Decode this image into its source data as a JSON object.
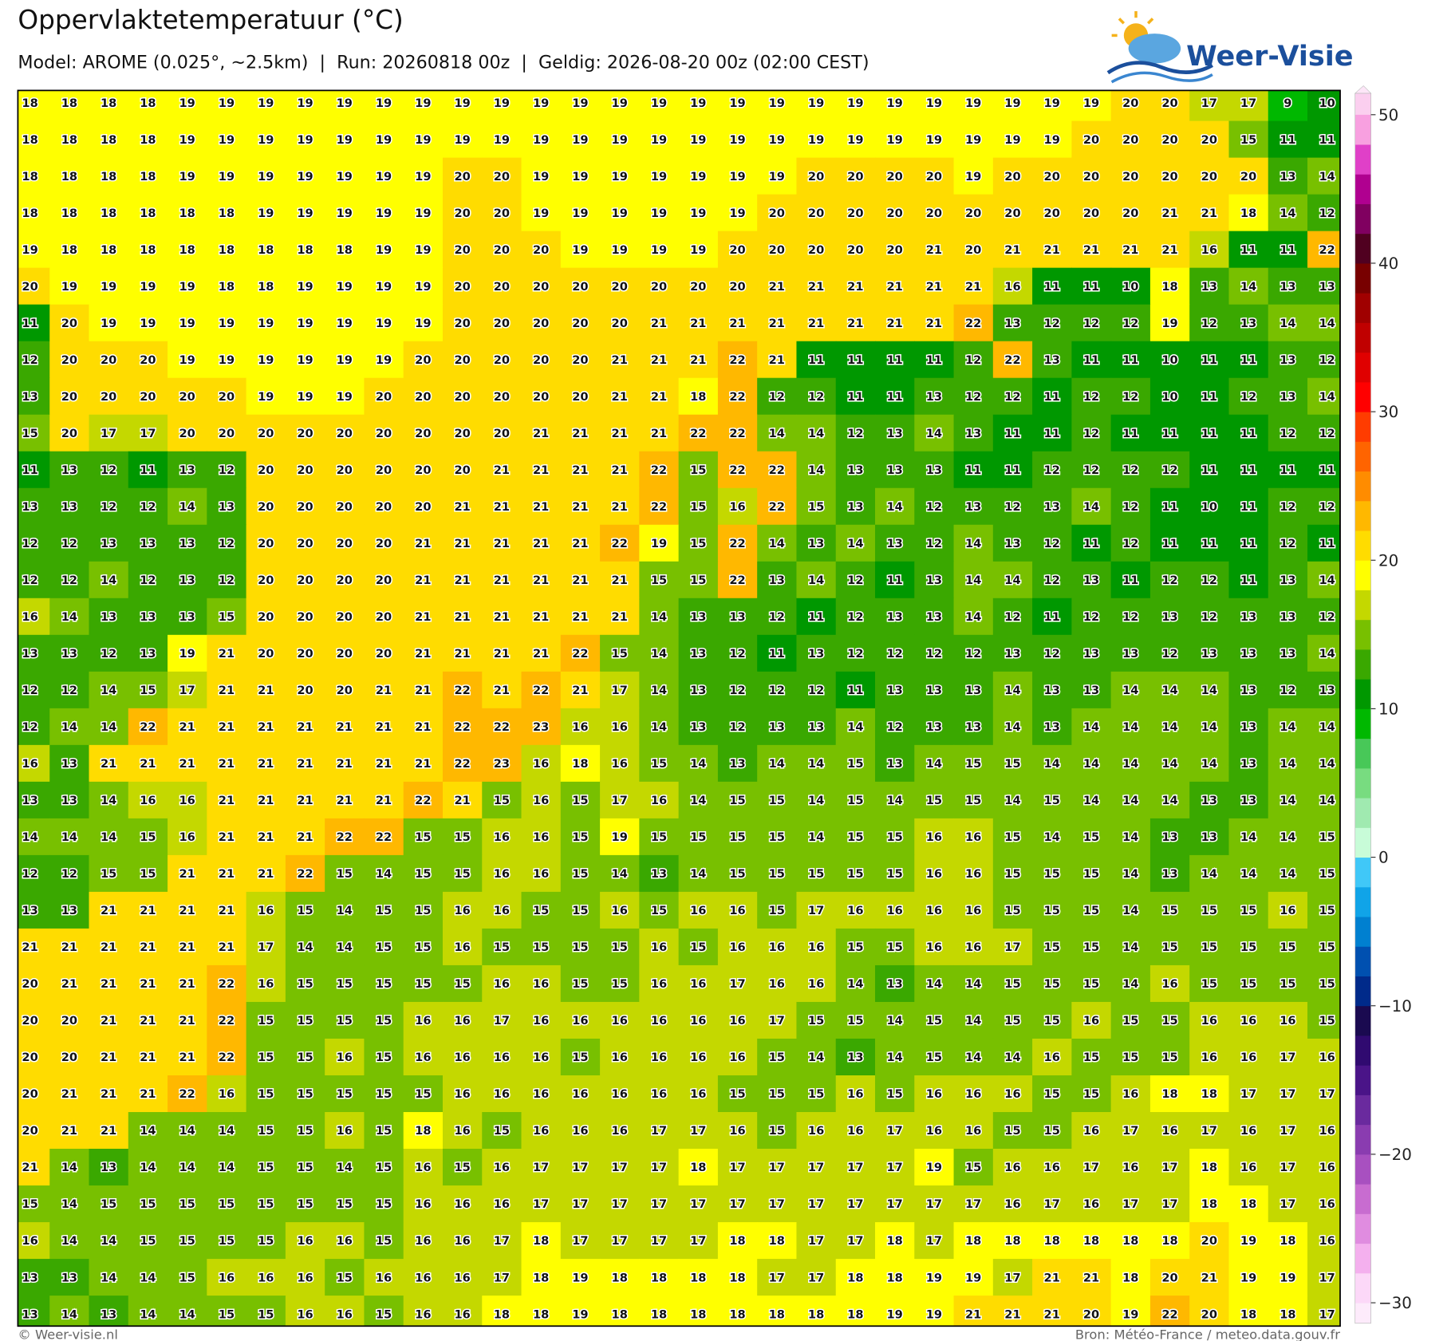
{
  "header": {
    "title": "Oppervlaktetemperatuur (°C)",
    "subtitle": "Model: AROME (0.025°, ~2.5km)  |  Run: 20260818 00z  |  Geldig: 2026-08-20 00z (02:00 CEST)"
  },
  "logo": "Weer-Visie",
  "map": {
    "values": [
      [
        18,
        18,
        18,
        18,
        19,
        19,
        19,
        19,
        19,
        19,
        19,
        19,
        19,
        19,
        19,
        19,
        19,
        19,
        19,
        19,
        19,
        19,
        19,
        19,
        19,
        19,
        19,
        19,
        20,
        20,
        17,
        17,
        9,
        10
      ],
      [
        18,
        18,
        18,
        18,
        19,
        19,
        19,
        19,
        19,
        19,
        19,
        19,
        19,
        19,
        19,
        19,
        19,
        19,
        19,
        19,
        19,
        19,
        19,
        19,
        19,
        19,
        19,
        20,
        20,
        20,
        20,
        15,
        11,
        11
      ],
      [
        18,
        18,
        18,
        18,
        19,
        19,
        19,
        19,
        19,
        19,
        19,
        20,
        20,
        19,
        19,
        19,
        19,
        19,
        19,
        19,
        20,
        20,
        20,
        20,
        19,
        20,
        20,
        20,
        20,
        20,
        20,
        20,
        13,
        14
      ],
      [
        18,
        18,
        18,
        18,
        18,
        18,
        19,
        19,
        19,
        19,
        19,
        20,
        20,
        19,
        19,
        19,
        19,
        19,
        19,
        20,
        20,
        20,
        20,
        20,
        20,
        20,
        20,
        20,
        20,
        21,
        21,
        18,
        14,
        12
      ],
      [
        19,
        18,
        18,
        18,
        18,
        18,
        18,
        18,
        18,
        19,
        19,
        20,
        20,
        20,
        19,
        19,
        19,
        19,
        20,
        20,
        20,
        20,
        20,
        21,
        20,
        21,
        21,
        21,
        21,
        21,
        16,
        11,
        11,
        22
      ],
      [
        20,
        19,
        19,
        19,
        19,
        18,
        18,
        19,
        19,
        19,
        19,
        20,
        20,
        20,
        20,
        20,
        20,
        20,
        20,
        21,
        21,
        21,
        21,
        21,
        21,
        16,
        11,
        11,
        10,
        18,
        13,
        14,
        13,
        13
      ],
      [
        11,
        20,
        19,
        19,
        19,
        19,
        19,
        19,
        19,
        19,
        19,
        20,
        20,
        20,
        20,
        20,
        21,
        21,
        21,
        21,
        21,
        21,
        21,
        21,
        22,
        13,
        12,
        12,
        12,
        19,
        12,
        13,
        14,
        14
      ],
      [
        12,
        20,
        20,
        20,
        19,
        19,
        19,
        19,
        19,
        19,
        20,
        20,
        20,
        20,
        20,
        21,
        21,
        21,
        22,
        21,
        11,
        11,
        11,
        11,
        12,
        22,
        13,
        11,
        11,
        10,
        11,
        11,
        13,
        12
      ],
      [
        13,
        20,
        20,
        20,
        20,
        20,
        19,
        19,
        19,
        20,
        20,
        20,
        20,
        20,
        20,
        21,
        21,
        18,
        22,
        12,
        12,
        11,
        11,
        13,
        12,
        12,
        11,
        12,
        12,
        10,
        11,
        12,
        13,
        14
      ],
      [
        15,
        20,
        17,
        17,
        20,
        20,
        20,
        20,
        20,
        20,
        20,
        20,
        20,
        21,
        21,
        21,
        21,
        22,
        22,
        14,
        14,
        12,
        13,
        14,
        13,
        11,
        11,
        12,
        11,
        11,
        11,
        11,
        12,
        12
      ],
      [
        11,
        13,
        12,
        11,
        13,
        12,
        20,
        20,
        20,
        20,
        20,
        20,
        21,
        21,
        21,
        21,
        22,
        15,
        22,
        22,
        14,
        13,
        13,
        13,
        11,
        11,
        12,
        12,
        12,
        12,
        11,
        11,
        11,
        11
      ],
      [
        13,
        13,
        12,
        12,
        14,
        13,
        20,
        20,
        20,
        20,
        20,
        21,
        21,
        21,
        21,
        21,
        22,
        15,
        16,
        22,
        15,
        13,
        14,
        12,
        13,
        12,
        13,
        14,
        12,
        11,
        10,
        11,
        12,
        12
      ],
      [
        12,
        12,
        13,
        13,
        13,
        12,
        20,
        20,
        20,
        20,
        21,
        21,
        21,
        21,
        21,
        22,
        19,
        15,
        22,
        14,
        13,
        14,
        13,
        12,
        14,
        13,
        12,
        11,
        12,
        11,
        11,
        11,
        12,
        11
      ],
      [
        12,
        12,
        14,
        12,
        13,
        12,
        20,
        20,
        20,
        20,
        21,
        21,
        21,
        21,
        21,
        21,
        15,
        15,
        22,
        13,
        14,
        12,
        11,
        13,
        14,
        14,
        12,
        13,
        11,
        12,
        12,
        11,
        13,
        14
      ],
      [
        16,
        14,
        13,
        13,
        13,
        15,
        20,
        20,
        20,
        20,
        21,
        21,
        21,
        21,
        21,
        21,
        14,
        13,
        13,
        12,
        11,
        12,
        13,
        13,
        14,
        12,
        11,
        12,
        12,
        13,
        12,
        13,
        13,
        12
      ],
      [
        13,
        13,
        12,
        13,
        19,
        21,
        20,
        20,
        20,
        20,
        21,
        21,
        21,
        21,
        22,
        15,
        14,
        13,
        12,
        11,
        13,
        12,
        12,
        12,
        12,
        13,
        12,
        13,
        13,
        12,
        13,
        13,
        13,
        14
      ],
      [
        12,
        12,
        14,
        15,
        17,
        21,
        21,
        20,
        20,
        21,
        21,
        22,
        21,
        22,
        21,
        17,
        14,
        13,
        12,
        12,
        12,
        11,
        13,
        13,
        13,
        14,
        13,
        13,
        14,
        14,
        14,
        13,
        12,
        13
      ],
      [
        12,
        14,
        14,
        22,
        21,
        21,
        21,
        21,
        21,
        21,
        21,
        22,
        22,
        23,
        16,
        16,
        14,
        13,
        12,
        13,
        13,
        14,
        12,
        13,
        13,
        14,
        13,
        14,
        14,
        14,
        14,
        13,
        14,
        14
      ],
      [
        16,
        13,
        21,
        21,
        21,
        21,
        21,
        21,
        21,
        21,
        21,
        22,
        23,
        16,
        18,
        16,
        15,
        14,
        13,
        14,
        14,
        15,
        13,
        14,
        15,
        15,
        14,
        14,
        14,
        14,
        14,
        13,
        14,
        14
      ],
      [
        13,
        13,
        14,
        16,
        16,
        21,
        21,
        21,
        21,
        21,
        22,
        21,
        15,
        16,
        15,
        17,
        16,
        14,
        15,
        15,
        14,
        15,
        14,
        15,
        15,
        14,
        15,
        14,
        14,
        14,
        13,
        13,
        14,
        14
      ],
      [
        14,
        14,
        14,
        15,
        16,
        21,
        21,
        21,
        22,
        22,
        15,
        15,
        16,
        16,
        15,
        19,
        15,
        15,
        15,
        15,
        14,
        15,
        15,
        16,
        16,
        15,
        14,
        15,
        14,
        13,
        13,
        14,
        14,
        15
      ],
      [
        12,
        12,
        15,
        15,
        21,
        21,
        21,
        22,
        15,
        14,
        15,
        15,
        16,
        16,
        15,
        14,
        13,
        14,
        15,
        15,
        15,
        15,
        15,
        16,
        16,
        15,
        15,
        15,
        14,
        13,
        14,
        14,
        14,
        15
      ],
      [
        13,
        13,
        21,
        21,
        21,
        21,
        16,
        15,
        14,
        15,
        15,
        16,
        16,
        15,
        15,
        16,
        15,
        16,
        16,
        15,
        17,
        16,
        16,
        16,
        16,
        15,
        15,
        15,
        14,
        15,
        15,
        15,
        16,
        15
      ],
      [
        21,
        21,
        21,
        21,
        21,
        21,
        17,
        14,
        14,
        15,
        15,
        16,
        15,
        15,
        15,
        15,
        16,
        15,
        16,
        16,
        16,
        15,
        15,
        16,
        16,
        17,
        15,
        15,
        14,
        15,
        15,
        15,
        15,
        15
      ],
      [
        20,
        21,
        21,
        21,
        21,
        22,
        16,
        15,
        15,
        15,
        15,
        15,
        16,
        16,
        15,
        15,
        16,
        16,
        17,
        16,
        16,
        14,
        13,
        14,
        14,
        15,
        15,
        15,
        14,
        16,
        15,
        15,
        15,
        15
      ],
      [
        20,
        20,
        21,
        21,
        21,
        22,
        15,
        15,
        15,
        15,
        16,
        16,
        17,
        16,
        16,
        16,
        16,
        16,
        16,
        17,
        15,
        15,
        14,
        15,
        14,
        15,
        15,
        16,
        15,
        15,
        16,
        16,
        16,
        15
      ],
      [
        20,
        20,
        21,
        21,
        21,
        22,
        15,
        15,
        16,
        15,
        16,
        16,
        16,
        16,
        15,
        16,
        16,
        16,
        16,
        15,
        14,
        13,
        14,
        15,
        14,
        14,
        16,
        15,
        15,
        15,
        16,
        16,
        17,
        16
      ],
      [
        20,
        21,
        21,
        21,
        22,
        16,
        15,
        15,
        15,
        15,
        15,
        16,
        16,
        16,
        16,
        16,
        16,
        16,
        15,
        15,
        15,
        16,
        15,
        16,
        16,
        16,
        15,
        15,
        16,
        18,
        18,
        17,
        17,
        17
      ],
      [
        20,
        21,
        21,
        14,
        14,
        14,
        15,
        15,
        16,
        15,
        18,
        16,
        15,
        16,
        16,
        16,
        17,
        17,
        16,
        15,
        16,
        16,
        17,
        16,
        16,
        15,
        15,
        16,
        17,
        16,
        17,
        16,
        17,
        16
      ],
      [
        21,
        14,
        13,
        14,
        14,
        14,
        15,
        15,
        14,
        15,
        16,
        15,
        16,
        17,
        17,
        17,
        17,
        18,
        17,
        17,
        17,
        17,
        17,
        19,
        15,
        16,
        16,
        17,
        16,
        17,
        18,
        16,
        17,
        16
      ],
      [
        15,
        14,
        15,
        15,
        15,
        15,
        15,
        15,
        15,
        15,
        16,
        16,
        16,
        17,
        17,
        17,
        17,
        17,
        17,
        17,
        17,
        17,
        17,
        17,
        17,
        16,
        17,
        16,
        17,
        17,
        18,
        18,
        17,
        16
      ],
      [
        16,
        14,
        14,
        15,
        15,
        15,
        15,
        16,
        16,
        15,
        16,
        16,
        17,
        18,
        17,
        17,
        17,
        17,
        18,
        18,
        17,
        17,
        18,
        17,
        18,
        18,
        18,
        18,
        18,
        18,
        20,
        19,
        18,
        16
      ],
      [
        13,
        13,
        14,
        14,
        15,
        16,
        16,
        16,
        15,
        16,
        16,
        16,
        17,
        18,
        19,
        18,
        18,
        18,
        18,
        17,
        17,
        18,
        18,
        19,
        19,
        17,
        21,
        21,
        18,
        20,
        21,
        19,
        19,
        17
      ],
      [
        13,
        14,
        13,
        14,
        14,
        15,
        15,
        16,
        16,
        15,
        16,
        16,
        18,
        18,
        19,
        18,
        18,
        18,
        18,
        18,
        18,
        18,
        19,
        19,
        21,
        21,
        21,
        20,
        19,
        22,
        20,
        18,
        18,
        17
      ]
    ]
  },
  "colorbar": {
    "lim": [
      -30,
      50
    ],
    "ticks": [
      {
        "value": -30,
        "label": "−30"
      },
      {
        "value": -20,
        "label": "−20"
      },
      {
        "value": -10,
        "label": "−10"
      },
      0,
      10,
      20,
      30,
      40,
      50
    ],
    "colors": [
      "#fcd8f8",
      "#f4b0ee",
      "#e08ce0",
      "#c86cd0",
      "#a850c0",
      "#8a3cb0",
      "#6a2a9e",
      "#4a1488",
      "#300a70",
      "#1a0a50",
      "#002a8a",
      "#0050b0",
      "#0080d0",
      "#10a4e8",
      "#40c8f8",
      "#c8fcd8",
      "#a0eab0",
      "#78dc80",
      "#48c858",
      "#00b800",
      "#009800",
      "#3aa800",
      "#78c000",
      "#c4d800",
      "#ffff00",
      "#ffdc00",
      "#ffb800",
      "#ff8c00",
      "#ff6400",
      "#ff3c00",
      "#ff0000",
      "#e00000",
      "#c00000",
      "#a00000",
      "#780000",
      "#500020",
      "#800060",
      "#b00090",
      "#e040c8",
      "#f8a0e0"
    ]
  },
  "footer": {
    "left": "© Weer-visie.nl",
    "right": "Bron: Météo-France / meteo.data.gouv.fr"
  }
}
